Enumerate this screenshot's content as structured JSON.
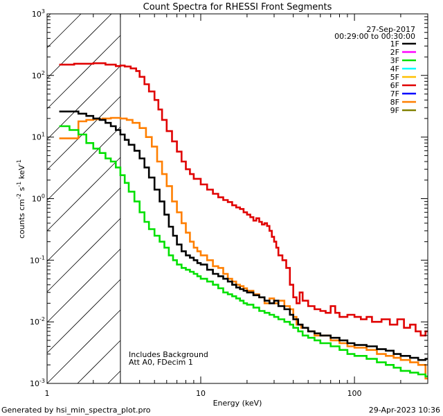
{
  "chart_data": {
    "type": "line",
    "title": "Count Spectra for RHESSI Front Segments",
    "xlabel": "Energy (keV)",
    "ylabel_base": "counts cm",
    "ylabel_exp1": "-2",
    "ylabel_mid": " s",
    "ylabel_exp2": "-1",
    "ylabel_end": " keV",
    "ylabel_exp3": "-1",
    "xscale": "log",
    "yscale": "log",
    "xlim": [
      1,
      300
    ],
    "ylim": [
      0.001,
      1000
    ],
    "x_tick_labels": [
      {
        "value": 1,
        "label": "1"
      },
      {
        "value": 10,
        "label": "10"
      },
      {
        "value": 100,
        "label": "100"
      }
    ],
    "y_tick_labels": [
      {
        "value": 0.001,
        "base": "10",
        "exp": "-3"
      },
      {
        "value": 0.01,
        "base": "10",
        "exp": "-2"
      },
      {
        "value": 0.1,
        "base": "10",
        "exp": "-1"
      },
      {
        "value": 1,
        "base": "10",
        "exp": "0"
      },
      {
        "value": 10,
        "base": "10",
        "exp": "1"
      },
      {
        "value": 100,
        "base": "10",
        "exp": "2"
      },
      {
        "value": 1000,
        "base": "10",
        "exp": "3"
      }
    ],
    "legend_position": "top-right",
    "date": "27-Sep-2017",
    "time_range": "00:29:00 to 00:30:00",
    "legend": [
      {
        "name": "1F",
        "color": "#000000"
      },
      {
        "name": "2F",
        "color": "#ff00ff"
      },
      {
        "name": "3F",
        "color": "#00e000"
      },
      {
        "name": "4F",
        "color": "#00ffff"
      },
      {
        "name": "5F",
        "color": "#ffc000"
      },
      {
        "name": "6F",
        "color": "#e00000"
      },
      {
        "name": "7F",
        "color": "#0000ff"
      },
      {
        "name": "8F",
        "color": "#ff7f00"
      },
      {
        "name": "9F",
        "color": "#808000"
      }
    ],
    "shaded_region": {
      "from": 1,
      "to": 3,
      "style": "hatched"
    },
    "annotations": [
      "Includes Background",
      "Att A0, FDecim 1"
    ],
    "series": [
      {
        "name": "6F",
        "color": "#e00000",
        "points": [
          [
            1.2,
            150
          ],
          [
            1.5,
            155
          ],
          [
            2.0,
            158
          ],
          [
            2.4,
            150
          ],
          [
            2.8,
            142
          ],
          [
            3.0,
            145
          ],
          [
            3.2,
            140
          ],
          [
            3.5,
            130
          ],
          [
            3.8,
            118
          ],
          [
            4.0,
            95
          ],
          [
            4.3,
            72
          ],
          [
            4.6,
            55
          ],
          [
            5.0,
            40
          ],
          [
            5.3,
            28
          ],
          [
            5.6,
            19
          ],
          [
            6.0,
            12.5
          ],
          [
            6.5,
            8.5
          ],
          [
            7.0,
            5.8
          ],
          [
            7.5,
            4
          ],
          [
            8.0,
            3
          ],
          [
            8.5,
            2.5
          ],
          [
            9.0,
            2.1
          ],
          [
            10,
            1.7
          ],
          [
            11,
            1.4
          ],
          [
            12,
            1.2
          ],
          [
            13,
            1.05
          ],
          [
            14,
            0.95
          ],
          [
            15,
            0.88
          ],
          [
            16,
            0.78
          ],
          [
            17,
            0.72
          ],
          [
            18,
            0.68
          ],
          [
            19,
            0.6
          ],
          [
            20,
            0.55
          ],
          [
            21,
            0.5
          ],
          [
            22,
            0.44
          ],
          [
            23,
            0.48
          ],
          [
            24,
            0.42
          ],
          [
            25,
            0.38
          ],
          [
            26,
            0.4
          ],
          [
            27,
            0.36
          ],
          [
            28,
            0.3
          ],
          [
            29,
            0.24
          ],
          [
            30,
            0.2
          ],
          [
            31,
            0.16
          ],
          [
            32,
            0.12
          ],
          [
            34,
            0.1
          ],
          [
            36,
            0.075
          ],
          [
            38,
            0.04
          ],
          [
            40,
            0.025
          ],
          [
            42,
            0.02
          ],
          [
            44,
            0.03
          ],
          [
            46,
            0.022
          ],
          [
            50,
            0.018
          ],
          [
            55,
            0.016
          ],
          [
            60,
            0.015
          ],
          [
            65,
            0.014
          ],
          [
            70,
            0.018
          ],
          [
            75,
            0.014
          ],
          [
            80,
            0.012
          ],
          [
            90,
            0.013
          ],
          [
            100,
            0.012
          ],
          [
            110,
            0.011
          ],
          [
            120,
            0.012
          ],
          [
            130,
            0.01
          ],
          [
            150,
            0.011
          ],
          [
            170,
            0.009
          ],
          [
            190,
            0.011
          ],
          [
            210,
            0.008
          ],
          [
            230,
            0.009
          ],
          [
            250,
            0.007
          ],
          [
            270,
            0.006
          ],
          [
            290,
            0.007
          ]
        ]
      },
      {
        "name": "8F",
        "color": "#ff7f00",
        "points": [
          [
            1.2,
            9.5
          ],
          [
            1.4,
            9.5
          ],
          [
            1.6,
            18
          ],
          [
            1.8,
            19
          ],
          [
            2.0,
            19.5
          ],
          [
            2.3,
            20
          ],
          [
            2.6,
            20.5
          ],
          [
            3.0,
            20
          ],
          [
            3.3,
            19
          ],
          [
            3.6,
            17
          ],
          [
            4.0,
            14
          ],
          [
            4.4,
            10
          ],
          [
            4.8,
            7
          ],
          [
            5.2,
            4
          ],
          [
            5.6,
            2.5
          ],
          [
            6.0,
            1.6
          ],
          [
            6.5,
            0.9
          ],
          [
            7.0,
            0.6
          ],
          [
            7.5,
            0.4
          ],
          [
            8.0,
            0.28
          ],
          [
            8.5,
            0.2
          ],
          [
            9.0,
            0.16
          ],
          [
            9.5,
            0.14
          ],
          [
            10,
            0.12
          ],
          [
            11,
            0.1
          ],
          [
            12,
            0.08
          ],
          [
            13,
            0.075
          ],
          [
            14,
            0.06
          ],
          [
            15,
            0.05
          ],
          [
            16,
            0.045
          ],
          [
            17,
            0.04
          ],
          [
            18,
            0.038
          ],
          [
            19,
            0.035
          ],
          [
            20,
            0.032
          ],
          [
            22,
            0.028
          ],
          [
            24,
            0.025
          ],
          [
            26,
            0.02
          ],
          [
            28,
            0.024
          ],
          [
            30,
            0.02
          ],
          [
            32,
            0.022
          ],
          [
            35,
            0.018
          ],
          [
            38,
            0.016
          ],
          [
            40,
            0.012
          ],
          [
            42,
            0.009
          ],
          [
            45,
            0.008
          ],
          [
            50,
            0.007
          ],
          [
            55,
            0.006
          ],
          [
            60,
            0.006
          ],
          [
            70,
            0.005
          ],
          [
            80,
            0.0045
          ],
          [
            90,
            0.004
          ],
          [
            100,
            0.0038
          ],
          [
            120,
            0.0035
          ],
          [
            140,
            0.003
          ],
          [
            160,
            0.0028
          ],
          [
            180,
            0.0026
          ],
          [
            200,
            0.0024
          ],
          [
            230,
            0.0022
          ],
          [
            260,
            0.002
          ],
          [
            290,
            0.0012
          ]
        ]
      },
      {
        "name": "1F",
        "color": "#000000",
        "points": [
          [
            1.2,
            26
          ],
          [
            1.4,
            26
          ],
          [
            1.6,
            24
          ],
          [
            1.8,
            22
          ],
          [
            2.0,
            20
          ],
          [
            2.2,
            19
          ],
          [
            2.4,
            17
          ],
          [
            2.6,
            15
          ],
          [
            2.8,
            13
          ],
          [
            3.0,
            11
          ],
          [
            3.2,
            9
          ],
          [
            3.4,
            7.5
          ],
          [
            3.7,
            6
          ],
          [
            4.0,
            4.5
          ],
          [
            4.3,
            3.2
          ],
          [
            4.6,
            2.2
          ],
          [
            5.0,
            1.4
          ],
          [
            5.4,
            0.9
          ],
          [
            5.8,
            0.55
          ],
          [
            6.2,
            0.35
          ],
          [
            6.6,
            0.25
          ],
          [
            7.0,
            0.18
          ],
          [
            7.5,
            0.14
          ],
          [
            8.0,
            0.12
          ],
          [
            8.5,
            0.11
          ],
          [
            9.0,
            0.1
          ],
          [
            9.5,
            0.09
          ],
          [
            10,
            0.085
          ],
          [
            11,
            0.07
          ],
          [
            12,
            0.06
          ],
          [
            13,
            0.055
          ],
          [
            14,
            0.05
          ],
          [
            15,
            0.045
          ],
          [
            16,
            0.04
          ],
          [
            17,
            0.036
          ],
          [
            18,
            0.034
          ],
          [
            19,
            0.032
          ],
          [
            20,
            0.03
          ],
          [
            22,
            0.027
          ],
          [
            24,
            0.025
          ],
          [
            26,
            0.022
          ],
          [
            28,
            0.02
          ],
          [
            30,
            0.022
          ],
          [
            32,
            0.018
          ],
          [
            35,
            0.016
          ],
          [
            38,
            0.013
          ],
          [
            40,
            0.011
          ],
          [
            43,
            0.009
          ],
          [
            46,
            0.008
          ],
          [
            50,
            0.007
          ],
          [
            55,
            0.0065
          ],
          [
            60,
            0.006
          ],
          [
            70,
            0.0055
          ],
          [
            80,
            0.005
          ],
          [
            90,
            0.0045
          ],
          [
            100,
            0.0042
          ],
          [
            120,
            0.004
          ],
          [
            140,
            0.0036
          ],
          [
            160,
            0.0034
          ],
          [
            180,
            0.003
          ],
          [
            200,
            0.0028
          ],
          [
            230,
            0.0026
          ],
          [
            260,
            0.0024
          ],
          [
            290,
            0.0025
          ]
        ]
      },
      {
        "name": "3F",
        "color": "#00e000",
        "points": [
          [
            1.2,
            15
          ],
          [
            1.4,
            13
          ],
          [
            1.6,
            11
          ],
          [
            1.8,
            8
          ],
          [
            2.0,
            6.5
          ],
          [
            2.2,
            5.5
          ],
          [
            2.4,
            4.5
          ],
          [
            2.6,
            4
          ],
          [
            2.8,
            3.2
          ],
          [
            3.0,
            2.4
          ],
          [
            3.2,
            1.8
          ],
          [
            3.4,
            1.3
          ],
          [
            3.7,
            0.9
          ],
          [
            4.0,
            0.6
          ],
          [
            4.3,
            0.42
          ],
          [
            4.6,
            0.32
          ],
          [
            5.0,
            0.25
          ],
          [
            5.4,
            0.2
          ],
          [
            5.8,
            0.16
          ],
          [
            6.2,
            0.12
          ],
          [
            6.6,
            0.1
          ],
          [
            7.0,
            0.085
          ],
          [
            7.5,
            0.075
          ],
          [
            8.0,
            0.07
          ],
          [
            8.5,
            0.065
          ],
          [
            9.0,
            0.06
          ],
          [
            9.5,
            0.055
          ],
          [
            10,
            0.05
          ],
          [
            11,
            0.045
          ],
          [
            12,
            0.04
          ],
          [
            13,
            0.035
          ],
          [
            14,
            0.03
          ],
          [
            15,
            0.028
          ],
          [
            16,
            0.026
          ],
          [
            17,
            0.024
          ],
          [
            18,
            0.022
          ],
          [
            19,
            0.02
          ],
          [
            20,
            0.019
          ],
          [
            22,
            0.017
          ],
          [
            24,
            0.015
          ],
          [
            26,
            0.014
          ],
          [
            28,
            0.013
          ],
          [
            30,
            0.012
          ],
          [
            32,
            0.011
          ],
          [
            35,
            0.01
          ],
          [
            38,
            0.009
          ],
          [
            40,
            0.008
          ],
          [
            43,
            0.007
          ],
          [
            46,
            0.006
          ],
          [
            50,
            0.0055
          ],
          [
            55,
            0.005
          ],
          [
            60,
            0.0045
          ],
          [
            70,
            0.004
          ],
          [
            80,
            0.0035
          ],
          [
            90,
            0.003
          ],
          [
            100,
            0.0028
          ],
          [
            120,
            0.0025
          ],
          [
            140,
            0.0022
          ],
          [
            160,
            0.002
          ],
          [
            180,
            0.0018
          ],
          [
            200,
            0.0016
          ],
          [
            230,
            0.0015
          ],
          [
            260,
            0.0014
          ],
          [
            290,
            0.0013
          ]
        ]
      }
    ]
  },
  "footer": {
    "generated_by": "Generated by hsi_min_spectra_plot.pro",
    "timestamp": "29-Apr-2023 10:36"
  }
}
